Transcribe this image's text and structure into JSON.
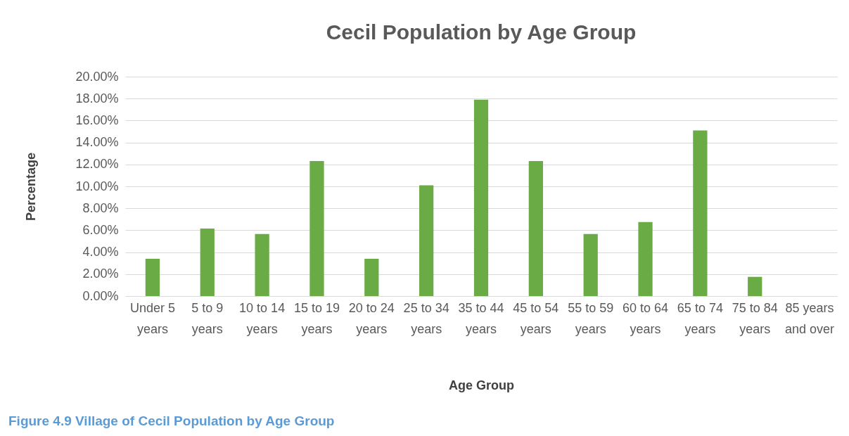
{
  "chart_data": {
    "type": "bar",
    "title": "Cecil Population by Age Group",
    "xlabel": "Age Group",
    "ylabel": "Percentage",
    "categories": [
      "Under 5 years",
      "5 to 9 years",
      "10 to 14 years",
      "15 to 19 years",
      "20 to 24 years",
      "25 to 34 years",
      "35 to 44 years",
      "45 to 54 years",
      "55 to 59 years",
      "60 to 64 years",
      "65 to 74 years",
      "75 to 84 years",
      "85 years and over"
    ],
    "values": [
      3.4,
      6.15,
      5.65,
      12.3,
      3.4,
      10.1,
      17.9,
      12.3,
      5.65,
      6.75,
      15.1,
      1.75,
      0
    ],
    "color": "#6aab45",
    "ylim": [
      0,
      20
    ],
    "yticks": [
      {
        "value": 0,
        "label": "0.00%"
      },
      {
        "value": 2,
        "label": "2.00%"
      },
      {
        "value": 4,
        "label": "4.00%"
      },
      {
        "value": 6,
        "label": "6.00%"
      },
      {
        "value": 8,
        "label": "8.00%"
      },
      {
        "value": 10,
        "label": "10.00%"
      },
      {
        "value": 12,
        "label": "12.00%"
      },
      {
        "value": 14,
        "label": "14.00%"
      },
      {
        "value": 16,
        "label": "16.00%"
      },
      {
        "value": 18,
        "label": "18.00%"
      },
      {
        "value": 20,
        "label": "20.00%"
      }
    ],
    "grid": "y",
    "annotations": [
      "Figure 4.9 Village of Cecil Population by Age Group"
    ]
  }
}
